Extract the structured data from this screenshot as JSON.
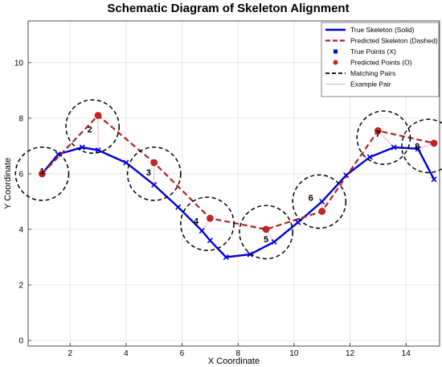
{
  "chart_data": {
    "type": "line",
    "title": "Schematic Diagram of Skeleton Alignment",
    "xlabel": "X Coordinate",
    "ylabel": "Y Coordinate",
    "xlim": [
      0.5,
      15.2
    ],
    "ylim": [
      -0.2,
      11.5
    ],
    "xticks": [
      2,
      4,
      6,
      8,
      10,
      12,
      14
    ],
    "yticks": [
      0,
      2,
      4,
      6,
      8,
      10
    ],
    "grid": true,
    "legend_position": "top-right",
    "series": [
      {
        "name": "True Skeleton (Solid)",
        "style": "solid",
        "color": "#0000dd",
        "x": [
          1.0,
          1.57,
          2.43,
          3.0,
          4.0,
          5.0,
          5.86,
          6.71,
          7.0,
          7.57,
          8.43,
          9.29,
          10.14,
          11.0,
          11.86,
          12.71,
          13.57,
          14.43,
          15.0
        ],
        "y": [
          6.0,
          6.7,
          6.95,
          6.85,
          6.4,
          5.6,
          4.8,
          3.95,
          3.6,
          3.0,
          3.1,
          3.55,
          4.25,
          5.0,
          5.95,
          6.6,
          6.95,
          6.9,
          5.8
        ]
      },
      {
        "name": "Predicted Skeleton (Dashed)",
        "style": "dashed",
        "color": "#b22222",
        "x": [
          1.0,
          3.0,
          5.0,
          7.0,
          9.0,
          11.0,
          13.0,
          15.0
        ],
        "y": [
          6.0,
          8.1,
          6.4,
          4.4,
          4.0,
          4.65,
          7.55,
          7.1
        ]
      },
      {
        "name": "True Points (X)",
        "marker": "x",
        "color": "#0000dd",
        "x": [
          1.0,
          1.57,
          2.43,
          3.0,
          4.0,
          5.0,
          5.86,
          6.71,
          7.0,
          7.57,
          8.43,
          9.29,
          10.14,
          11.0,
          11.86,
          12.71,
          13.57,
          14.43,
          15.0
        ],
        "y": [
          6.0,
          6.7,
          6.95,
          6.85,
          6.4,
          5.6,
          4.8,
          3.95,
          3.6,
          3.0,
          3.1,
          3.55,
          4.25,
          5.0,
          5.95,
          6.6,
          6.95,
          6.9,
          5.8
        ]
      },
      {
        "name": "Predicted Points (O)",
        "marker": "o",
        "color": "#cc2222",
        "x": [
          1.0,
          3.0,
          5.0,
          7.0,
          9.0,
          11.0,
          13.0,
          15.0
        ],
        "y": [
          6.0,
          8.1,
          6.4,
          4.4,
          4.0,
          4.65,
          7.55,
          7.1
        ]
      }
    ],
    "matching_pairs": {
      "name": "Matching Pairs",
      "labels": [
        "1",
        "2",
        "3",
        "4",
        "5",
        "6",
        "7",
        "8"
      ],
      "center_x": [
        1.0,
        2.8,
        5.0,
        6.9,
        9.0,
        10.9,
        13.2,
        14.8
      ],
      "center_y": [
        6.0,
        7.7,
        6.0,
        4.2,
        3.9,
        5.0,
        7.3,
        7.0
      ],
      "label_x": [
        1.0,
        2.7,
        4.8,
        6.5,
        9.0,
        10.6,
        13.0,
        14.4
      ],
      "label_y": [
        6.1,
        7.6,
        6.05,
        4.3,
        3.65,
        5.15,
        7.45,
        7.0
      ],
      "radius": 0.95
    },
    "example_pair": {
      "name": "Example Pair",
      "x": [
        2.43,
        3.0
      ],
      "y": [
        6.95,
        8.1
      ]
    }
  }
}
